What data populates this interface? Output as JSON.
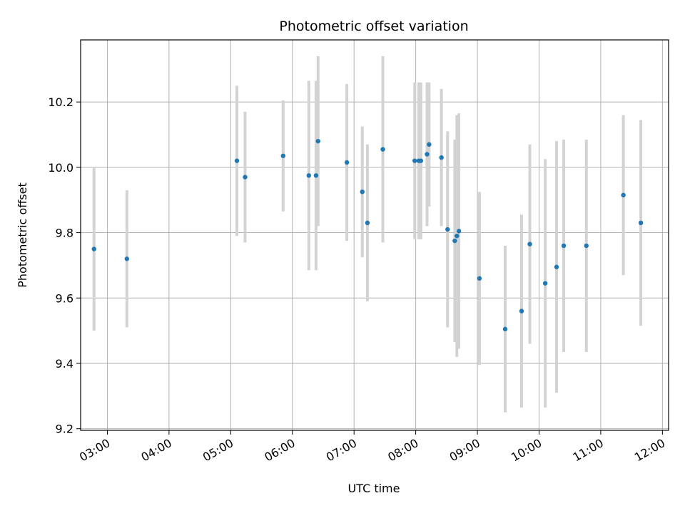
{
  "chart_data": {
    "type": "scatter",
    "title": "Photometric offset variation",
    "xlabel": "UTC time",
    "ylabel": "Photometric offset",
    "x_axis": "time",
    "xlim": [
      "02:34",
      "12:06"
    ],
    "ylim": [
      9.195,
      10.39
    ],
    "xticks": [
      "03:00",
      "04:00",
      "05:00",
      "06:00",
      "07:00",
      "08:00",
      "09:00",
      "10:00",
      "11:00",
      "12:00"
    ],
    "yticks": [
      9.2,
      9.4,
      9.6,
      9.8,
      10.0,
      10.2
    ],
    "grid": true,
    "point_color": "#1f77b4",
    "errorbar_color": "#d3d3d3",
    "points": [
      {
        "x": "02:47",
        "y": 9.75,
        "yerr": 0.25
      },
      {
        "x": "03:19",
        "y": 9.72,
        "yerr": 0.21
      },
      {
        "x": "05:06",
        "y": 10.02,
        "yerr": 0.23
      },
      {
        "x": "05:14",
        "y": 9.97,
        "yerr": 0.2
      },
      {
        "x": "05:51",
        "y": 10.035,
        "yerr": 0.17
      },
      {
        "x": "06:16",
        "y": 9.975,
        "yerr": 0.29
      },
      {
        "x": "06:23",
        "y": 9.975,
        "yerr": 0.29
      },
      {
        "x": "06:25",
        "y": 10.08,
        "yerr": 0.26
      },
      {
        "x": "06:53",
        "y": 10.015,
        "yerr": 0.24
      },
      {
        "x": "07:08",
        "y": 9.925,
        "yerr": 0.2
      },
      {
        "x": "07:13",
        "y": 9.83,
        "yerr": 0.24
      },
      {
        "x": "07:28",
        "y": 10.055,
        "yerr": 0.285
      },
      {
        "x": "07:59",
        "y": 10.02,
        "yerr": 0.24
      },
      {
        "x": "08:03",
        "y": 10.02,
        "yerr": 0.24
      },
      {
        "x": "08:05",
        "y": 10.02,
        "yerr": 0.24
      },
      {
        "x": "08:11",
        "y": 10.04,
        "yerr": 0.22
      },
      {
        "x": "08:13",
        "y": 10.07,
        "yerr": 0.19
      },
      {
        "x": "08:25",
        "y": 10.03,
        "yerr": 0.21
      },
      {
        "x": "08:31",
        "y": 9.81,
        "yerr": 0.3
      },
      {
        "x": "08:38",
        "y": 9.775,
        "yerr": 0.31
      },
      {
        "x": "08:40",
        "y": 9.79,
        "yerr": 0.37
      },
      {
        "x": "08:42",
        "y": 9.805,
        "yerr": 0.36
      },
      {
        "x": "09:02",
        "y": 9.66,
        "yerr": 0.265
      },
      {
        "x": "09:27",
        "y": 9.505,
        "yerr": 0.255
      },
      {
        "x": "09:43",
        "y": 9.56,
        "yerr": 0.295
      },
      {
        "x": "09:51",
        "y": 9.765,
        "yerr": 0.305
      },
      {
        "x": "10:06",
        "y": 9.645,
        "yerr": 0.38
      },
      {
        "x": "10:17",
        "y": 9.695,
        "yerr": 0.385
      },
      {
        "x": "10:24",
        "y": 9.76,
        "yerr": 0.325
      },
      {
        "x": "10:46",
        "y": 9.76,
        "yerr": 0.325
      },
      {
        "x": "11:22",
        "y": 9.915,
        "yerr": 0.245
      },
      {
        "x": "11:39",
        "y": 9.83,
        "yerr": 0.315
      }
    ]
  }
}
